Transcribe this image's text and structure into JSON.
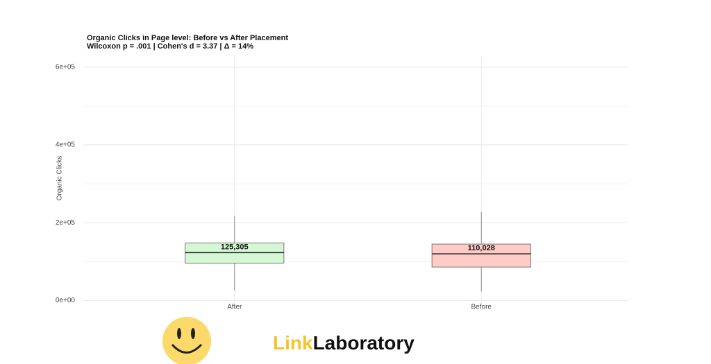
{
  "chart_data": {
    "type": "box",
    "title": "Organic Clicks in Page level: Before vs After Placement",
    "subtitle": "Wilcoxon p = .001 | Cohen's d = 3.37 | Δ = 14%",
    "y_label": "Organic Clicks",
    "categories": [
      "After",
      "Before"
    ],
    "whisker_low": [
      25000,
      23000
    ],
    "q1": [
      96000,
      86000
    ],
    "median": [
      123000,
      120000
    ],
    "q3": [
      148000,
      145000
    ],
    "whisker_high": [
      218000,
      227000
    ],
    "colors": [
      "#d4f7d4",
      "#ffcbc6"
    ],
    "values": [
      125305,
      110028
    ],
    "value_labels": [
      "125,305",
      "110,028"
    ],
    "ylim": [
      -10000,
      630000
    ],
    "yticks": [
      {
        "value": 0,
        "label": "0e+00"
      },
      {
        "value": 200000,
        "label": "2e+05"
      },
      {
        "value": 400000,
        "label": "4e+05"
      },
      {
        "value": 600000,
        "label": "6e+05"
      }
    ],
    "minor_yticks": [
      100000,
      300000,
      500000
    ],
    "grid": true
  },
  "brand": {
    "part1": "Link",
    "part2": "Laboratory"
  }
}
